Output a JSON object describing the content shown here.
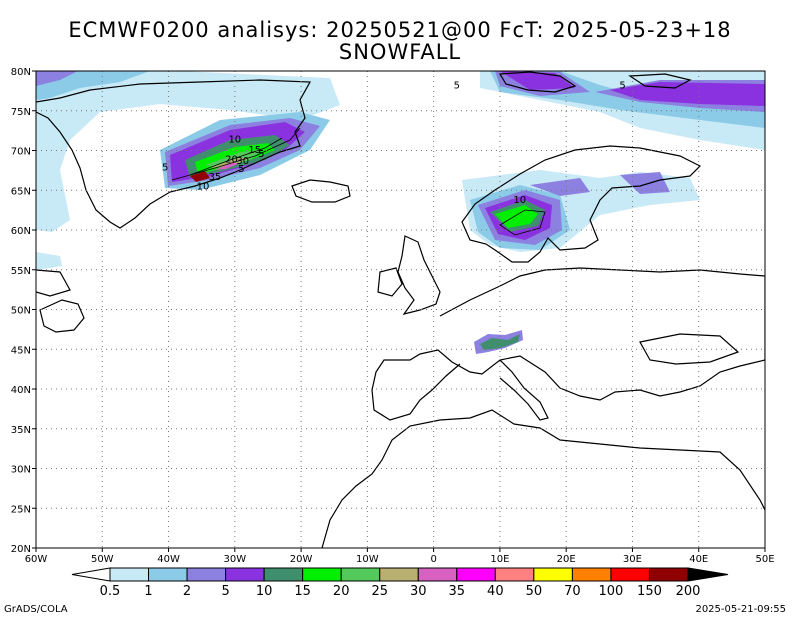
{
  "title_line1": "ECMWF0200 analisys: 20250521@00 FcT: 2025-05-23+18",
  "title_line2": "SNOWFALL",
  "footer_left": "GrADS/COLA",
  "footer_right": "2025-05-21-09:55",
  "axes": {
    "lon_labels": [
      "60W",
      "50W",
      "40W",
      "30W",
      "20W",
      "10W",
      "0",
      "10E",
      "20E",
      "30E",
      "40E",
      "50E"
    ],
    "lon_values": [
      -60,
      -50,
      -40,
      -30,
      -20,
      -10,
      0,
      10,
      20,
      30,
      40,
      50
    ],
    "lat_labels": [
      "20N",
      "25N",
      "30N",
      "35N",
      "40N",
      "45N",
      "50N",
      "55N",
      "60N",
      "65N",
      "70N",
      "75N",
      "80N"
    ],
    "lat_values": [
      20,
      25,
      30,
      35,
      40,
      45,
      50,
      55,
      60,
      65,
      70,
      75,
      80
    ],
    "lon_range": [
      -60,
      50
    ],
    "lat_range": [
      20,
      80
    ],
    "grid": "dotted"
  },
  "colorbar": {
    "labels": [
      "0.5",
      "1",
      "2",
      "5",
      "10",
      "15",
      "20",
      "25",
      "30",
      "35",
      "40",
      "50",
      "70",
      "100",
      "150",
      "200"
    ],
    "colors": [
      "#ffffff",
      "#c8e9f6",
      "#8ccbe8",
      "#8c80e0",
      "#8b32e0",
      "#3f8e6e",
      "#00ee00",
      "#52c95a",
      "#b8b070",
      "#d860c0",
      "#ff00ff",
      "#ff8080",
      "#ffff00",
      "#ff8000",
      "#ff0000",
      "#900000",
      "#000000"
    ]
  },
  "contour_labels": [
    {
      "text": "10",
      "lon": -30,
      "lat": 71
    },
    {
      "text": "15",
      "lon": -27,
      "lat": 69.7
    },
    {
      "text": "5",
      "lon": -26,
      "lat": 69.2
    },
    {
      "text": "20",
      "lon": -30.5,
      "lat": 68.5
    },
    {
      "text": "30",
      "lon": -28.8,
      "lat": 68.3
    },
    {
      "text": "5",
      "lon": -29,
      "lat": 67.3
    },
    {
      "text": "5",
      "lon": -40.5,
      "lat": 67.5
    },
    {
      "text": "35",
      "lon": -33,
      "lat": 66.3
    },
    {
      "text": "10",
      "lon": -34.8,
      "lat": 65.1
    },
    {
      "text": "5",
      "lon": 3.5,
      "lat": 77.8
    },
    {
      "text": "5",
      "lon": 28.5,
      "lat": 77.8
    },
    {
      "text": "10",
      "lon": 13,
      "lat": 63.4
    }
  ]
}
